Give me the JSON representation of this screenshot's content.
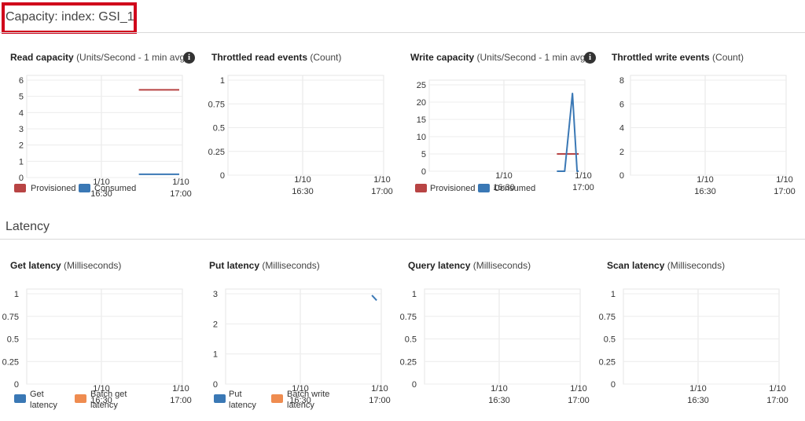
{
  "sections": {
    "capacity": "Capacity: index: GSI_1",
    "latency": "Latency"
  },
  "colors": {
    "provisioned": "#b84444",
    "consumed": "#3a78b5",
    "batch": "#ef8c50",
    "highlight_box": "#d0021b"
  },
  "panels": {
    "read_capacity": {
      "title": "Read capacity",
      "unit": "(Units/Second - 1 min avg)"
    },
    "throttled_read": {
      "title": "Throttled read events",
      "unit": "(Count)"
    },
    "write_capacity": {
      "title": "Write capacity",
      "unit": "(Units/Second - 1 min avg)"
    },
    "throttled_write": {
      "title": "Throttled write events",
      "unit": "(Count)"
    },
    "get_latency": {
      "title": "Get latency",
      "unit": "(Milliseconds)"
    },
    "put_latency": {
      "title": "Put latency",
      "unit": "(Milliseconds)"
    },
    "query_latency": {
      "title": "Query latency",
      "unit": "(Milliseconds)"
    },
    "scan_latency": {
      "title": "Scan latency",
      "unit": "(Milliseconds)"
    }
  },
  "legends": {
    "provisioned": "Provisioned",
    "consumed": "Consumed",
    "get_latency": [
      "Get",
      "latency"
    ],
    "batch_get_latency": [
      "Batch get",
      "latency"
    ],
    "put_latency": [
      "Put",
      "latency"
    ],
    "batch_write_latency": [
      "Batch write",
      "latency"
    ]
  },
  "chart_data": [
    {
      "id": "read_capacity",
      "type": "line",
      "yticks": [
        "0",
        "1",
        "2",
        "3",
        "4",
        "5",
        "6"
      ],
      "ylim": [
        0,
        6
      ],
      "xticks": [
        [
          "1/10",
          "16:30"
        ],
        [
          "1/10",
          "17:00"
        ]
      ],
      "series": [
        {
          "name": "Provisioned",
          "color": "#b84444",
          "points": [
            [
              0.72,
              5.4
            ],
            [
              0.98,
              5.4
            ]
          ]
        },
        {
          "name": "Consumed",
          "color": "#3a78b5",
          "points": [
            [
              0.72,
              0.2
            ],
            [
              0.98,
              0.2
            ]
          ]
        }
      ]
    },
    {
      "id": "throttled_read",
      "type": "line",
      "yticks": [
        "0",
        "0.25",
        "0.5",
        "0.75",
        "1"
      ],
      "ylim": [
        0,
        1
      ],
      "xticks": [
        [
          "1/10",
          "16:30"
        ],
        [
          "1/10",
          "17:00"
        ]
      ],
      "series": []
    },
    {
      "id": "write_capacity",
      "type": "line",
      "yticks": [
        "0",
        "5",
        "10",
        "15",
        "20",
        "25"
      ],
      "ylim": [
        0,
        25
      ],
      "xticks": [
        [
          "1/10",
          "16:30"
        ],
        [
          "1/10",
          "17:00"
        ]
      ],
      "series": [
        {
          "name": "Provisioned",
          "color": "#b84444",
          "points": [
            [
              0.82,
              5
            ],
            [
              0.96,
              5
            ]
          ]
        },
        {
          "name": "Consumed",
          "color": "#3a78b5",
          "points": [
            [
              0.82,
              0
            ],
            [
              0.87,
              0
            ],
            [
              0.92,
              22.5
            ],
            [
              0.95,
              0
            ],
            [
              0.96,
              0
            ]
          ]
        }
      ]
    },
    {
      "id": "throttled_write",
      "type": "line",
      "yticks": [
        "0",
        "2",
        "4",
        "6",
        "8"
      ],
      "ylim": [
        0,
        8
      ],
      "xticks": [
        [
          "1/10",
          "16:30"
        ],
        [
          "1/10",
          "17:00"
        ]
      ],
      "series": []
    },
    {
      "id": "get_latency",
      "type": "line",
      "yticks": [
        "0",
        "0.25",
        "0.5",
        "0.75",
        "1"
      ],
      "ylim": [
        0,
        1
      ],
      "xticks": [
        [
          "1/10",
          "16:30"
        ],
        [
          "1/10",
          "17:00"
        ]
      ],
      "series": []
    },
    {
      "id": "put_latency",
      "type": "line",
      "yticks": [
        "0",
        "1",
        "2",
        "3"
      ],
      "ylim": [
        0,
        3
      ],
      "xticks": [
        [
          "1/10",
          "16:30"
        ],
        [
          "1/10",
          "17:00"
        ]
      ],
      "series": [
        {
          "name": "Put latency",
          "color": "#3a78b5",
          "points": [
            [
              0.94,
              2.95
            ],
            [
              0.97,
              2.78
            ]
          ]
        }
      ]
    },
    {
      "id": "query_latency",
      "type": "line",
      "yticks": [
        "0",
        "0.25",
        "0.5",
        "0.75",
        "1"
      ],
      "ylim": [
        0,
        1
      ],
      "xticks": [
        [
          "1/10",
          "16:30"
        ],
        [
          "1/10",
          "17:00"
        ]
      ],
      "series": []
    },
    {
      "id": "scan_latency",
      "type": "line",
      "yticks": [
        "0",
        "0.25",
        "0.5",
        "0.75",
        "1"
      ],
      "ylim": [
        0,
        1
      ],
      "xticks": [
        [
          "1/10",
          "16:30"
        ],
        [
          "1/10",
          "17:00"
        ]
      ],
      "series": []
    }
  ]
}
